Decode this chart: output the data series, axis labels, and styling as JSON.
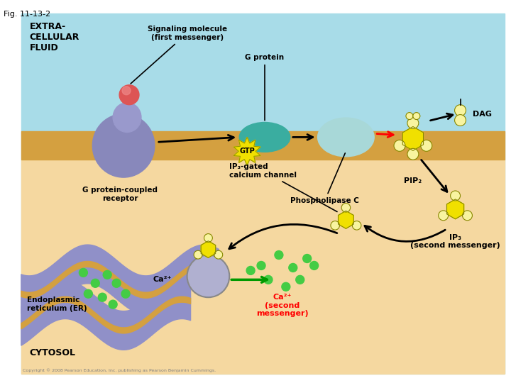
{
  "fig_label": "Fig. 11-13-2",
  "bg_outer": "#f5d8a0",
  "extracellular_color": "#a8dce8",
  "membrane_color": "#d4a040",
  "er_color": "#9090c8",
  "er_border_color": "#d4a040",
  "cytosol_color": "#f5d8a0",
  "labels": {
    "extra_fluid": "EXTRA-\nCELLULAR\nFLUID",
    "cytosol": "CYTOSOL",
    "signaling": "Signaling molecule\n(first messenger)",
    "g_protein": "G protein",
    "g_protein_coupled": "G protein-coupled\nreceptor",
    "gtp": "GTP",
    "phospholipase": "Phospholipase C",
    "pip2": "PIP₂",
    "dag": "DAG",
    "ip3": "IP₃\n(second messenger)",
    "ip3_channel": "IP₃-gated\ncalcium channel",
    "er": "Endoplasmic\nreticulum (ER)",
    "ca2_label": "Ca²⁺",
    "ca2_second": "Ca²⁺\n(second\nmessenger)"
  },
  "copyright": "Copyright © 2008 Pearson Education, Inc. publishing as Pearson Benjamin Cummings."
}
